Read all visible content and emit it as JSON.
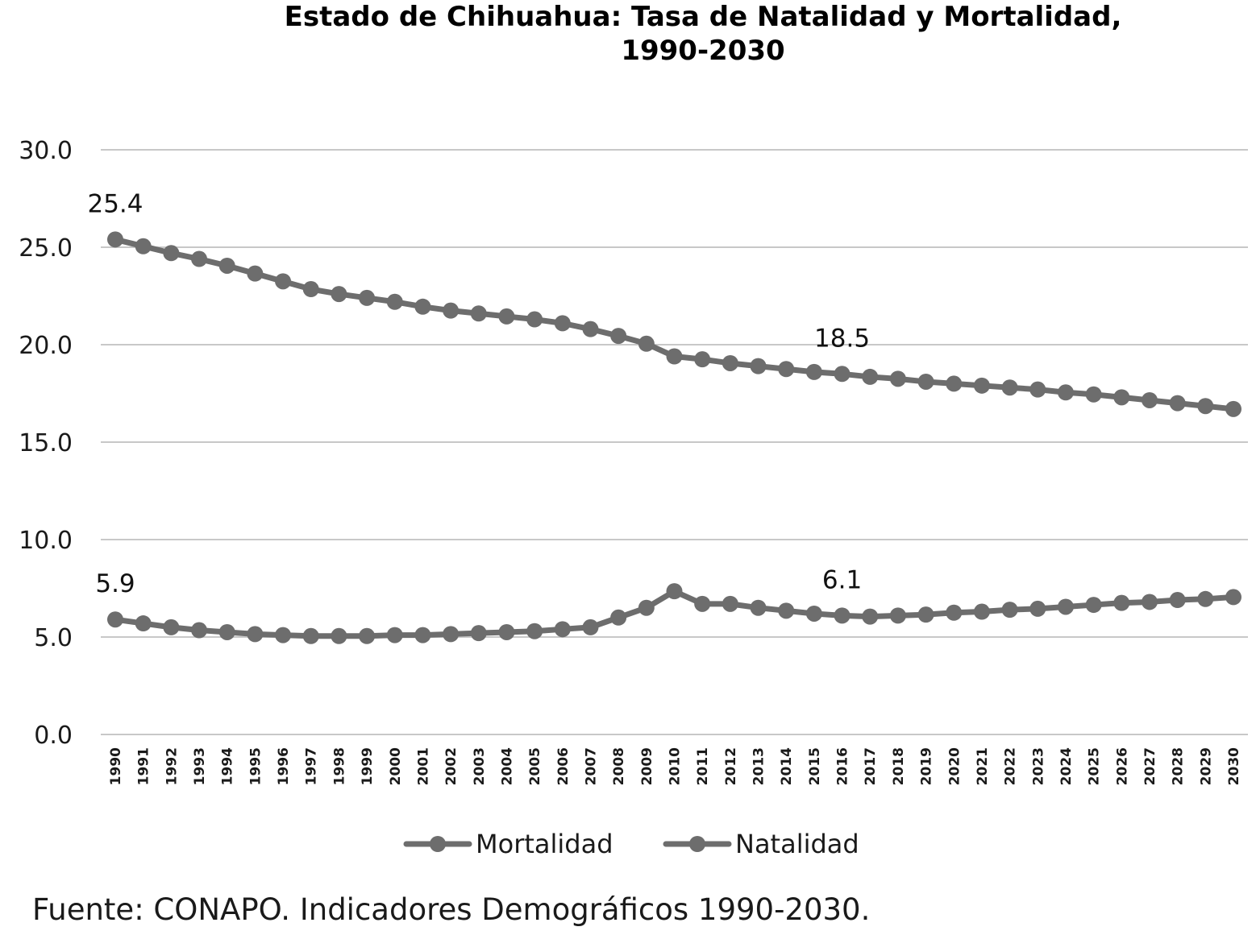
{
  "chart_data": {
    "type": "line",
    "title_lines": [
      "Estado de Chihuahua: Tasa de Natalidad y Mortalidad,",
      "1990-2030"
    ],
    "xlabel": "",
    "ylabel": "",
    "ylim": [
      0,
      30
    ],
    "y_ticks": [
      "0.0",
      "5.0",
      "10.0",
      "15.0",
      "20.0",
      "25.0",
      "30.0"
    ],
    "grid": true,
    "legend_position": "bottom",
    "line_color": "#6d6d6d",
    "categories": [
      "1990",
      "1991",
      "1992",
      "1993",
      "1994",
      "1995",
      "1996",
      "1997",
      "1998",
      "1999",
      "2000",
      "2001",
      "2002",
      "2003",
      "2004",
      "2005",
      "2006",
      "2007",
      "2008",
      "2009",
      "2010",
      "2011",
      "2012",
      "2013",
      "2014",
      "2015",
      "2016",
      "2017",
      "2018",
      "2019",
      "2020",
      "2021",
      "2022",
      "2023",
      "2024",
      "2025",
      "2026",
      "2027",
      "2028",
      "2029",
      "2030"
    ],
    "series": [
      {
        "name": "Mortalidad",
        "values": [
          5.9,
          5.7,
          5.5,
          5.35,
          5.25,
          5.15,
          5.1,
          5.05,
          5.05,
          5.05,
          5.1,
          5.1,
          5.15,
          5.2,
          5.25,
          5.3,
          5.4,
          5.5,
          6.0,
          6.5,
          7.35,
          6.7,
          6.7,
          6.5,
          6.35,
          6.2,
          6.1,
          6.05,
          6.1,
          6.15,
          6.25,
          6.3,
          6.4,
          6.45,
          6.55,
          6.65,
          6.75,
          6.8,
          6.9,
          6.95,
          7.05
        ],
        "labels": [
          {
            "year": "1990",
            "text": "5.9"
          },
          {
            "year": "2016",
            "text": "6.1"
          }
        ]
      },
      {
        "name": "Natalidad",
        "values": [
          25.4,
          25.05,
          24.7,
          24.4,
          24.05,
          23.65,
          23.25,
          22.85,
          22.6,
          22.4,
          22.2,
          21.95,
          21.75,
          21.6,
          21.45,
          21.3,
          21.1,
          20.8,
          20.45,
          20.05,
          19.4,
          19.25,
          19.05,
          18.9,
          18.75,
          18.6,
          18.5,
          18.35,
          18.25,
          18.1,
          18.0,
          17.9,
          17.8,
          17.7,
          17.55,
          17.45,
          17.3,
          17.15,
          17.0,
          16.85,
          16.7
        ],
        "labels": [
          {
            "year": "1990",
            "text": "25.4"
          },
          {
            "year": "2016",
            "text": "18.5"
          }
        ]
      }
    ]
  },
  "source": "Fuente: CONAPO. Indicadores Demográficos 1990-2030."
}
